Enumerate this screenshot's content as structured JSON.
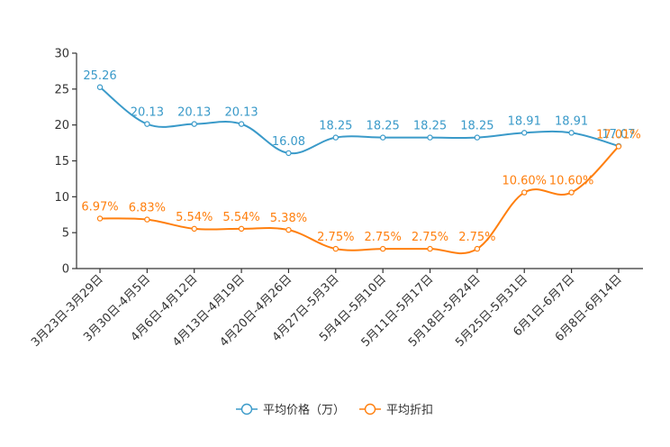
{
  "chart_data": {
    "type": "line",
    "title": "",
    "xlabel": "",
    "ylabel": "",
    "ylim": [
      0,
      30
    ],
    "yticks": [
      0,
      5,
      10,
      15,
      20,
      25,
      30
    ],
    "grid": false,
    "legend_position": "bottom",
    "categories": [
      "3月23日-3月29日",
      "3月30日-4月5日",
      "4月6日-4月12日",
      "4月13日-4月19日",
      "4月20日-4月26日",
      "4月27日-5月3日",
      "5月4日-5月10日",
      "5月11日-5月17日",
      "5月18日-5月24日",
      "5月25日-5月31日",
      "6月1日-6月7日",
      "6月8日-6月14日"
    ],
    "series": [
      {
        "name": "平均价格（万）",
        "color": "#3a9ac9",
        "values": [
          25.26,
          20.13,
          20.13,
          20.13,
          16.08,
          18.25,
          18.25,
          18.25,
          18.25,
          18.91,
          18.91,
          17.07
        ],
        "labels": [
          "25.26",
          "20.13",
          "20.13",
          "20.13",
          "16.08",
          "18.25",
          "18.25",
          "18.25",
          "18.25",
          "18.91",
          "18.91",
          "17.07"
        ]
      },
      {
        "name": "平均折扣",
        "color": "#ff7f0e",
        "values": [
          6.97,
          6.83,
          5.54,
          5.54,
          5.38,
          2.75,
          2.75,
          2.75,
          2.75,
          10.6,
          10.6,
          17.01
        ],
        "labels": [
          "6.97%",
          "6.83%",
          "5.54%",
          "5.54%",
          "5.38%",
          "2.75%",
          "2.75%",
          "2.75%",
          "2.75%",
          "10.60%",
          "10.60%",
          "17.01%"
        ]
      }
    ]
  }
}
